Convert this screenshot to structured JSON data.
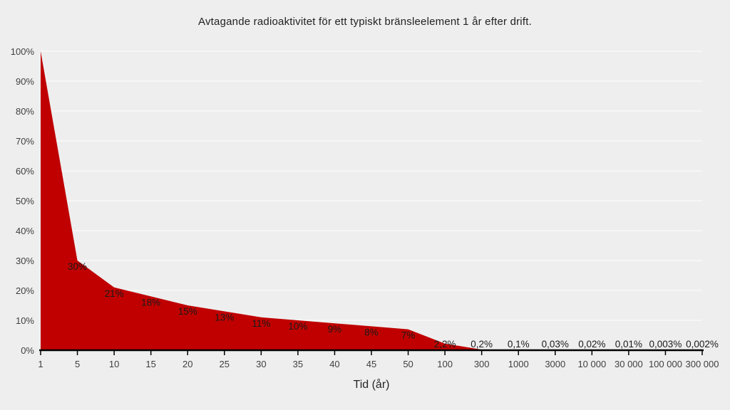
{
  "page": {
    "background": "#eeeeee"
  },
  "chart_data": {
    "type": "area",
    "title": "Avtagande radioaktivitet för ett typiskt bränsleelement 1 år efter drift.",
    "xlabel": "Tid (år)",
    "ylabel": "",
    "categories": [
      "1",
      "5",
      "10",
      "15",
      "20",
      "25",
      "30",
      "35",
      "40",
      "45",
      "50",
      "100",
      "300",
      "1000",
      "3000",
      "10 000",
      "30 000",
      "100 000",
      "300 000"
    ],
    "values": [
      100,
      30,
      21,
      18,
      15,
      13,
      11,
      10,
      9,
      8,
      7,
      2.2,
      0.2,
      0.1,
      0.03,
      0.02,
      0.01,
      0.003,
      0.002
    ],
    "point_labels": [
      "",
      "30%",
      "21%",
      "18%",
      "15%",
      "13%",
      "11%",
      "10%",
      "9%",
      "8%",
      "7%",
      "2,2%",
      "0,2%",
      "0,1%",
      "0,03%",
      "0,02%",
      "0,01%",
      "0,003%",
      "0,002%"
    ],
    "y_ticks": [
      "0%",
      "10%",
      "20%",
      "30%",
      "40%",
      "50%",
      "60%",
      "70%",
      "80%",
      "90%",
      "100%"
    ],
    "y_tick_values": [
      0,
      10,
      20,
      30,
      40,
      50,
      60,
      70,
      80,
      90,
      100
    ],
    "ylim": [
      0,
      100
    ],
    "x_axis_type": "category-equal-spacing",
    "grid": "horizontal",
    "legend": "none",
    "colors": {
      "area": "#c00000",
      "background": "#eeeeee",
      "gridline": "#f8f8f8",
      "axis": "#000000",
      "tick_label": "#3f3f3f",
      "data_label": "#1a1a1a",
      "title": "#222222"
    }
  }
}
